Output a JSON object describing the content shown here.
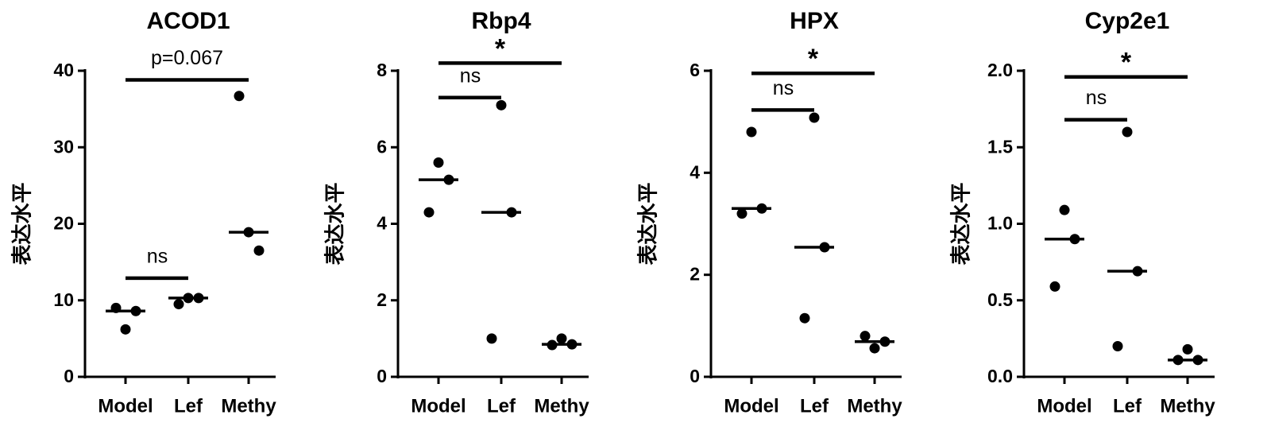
{
  "chart_data": [
    {
      "type": "dot",
      "title": "ACOD1",
      "y_label": "表达水平",
      "categories": [
        "Model",
        "Lef",
        "Methy"
      ],
      "values": [
        [
          9.0,
          6.2,
          8.6
        ],
        [
          9.5,
          10.3,
          10.3
        ],
        [
          36.7,
          18.9,
          16.5
        ]
      ],
      "medians": [
        8.6,
        10.3,
        18.9
      ],
      "ylim": [
        0,
        40
      ],
      "yticks": [
        0,
        10,
        20,
        30,
        40
      ],
      "annotations": [
        {
          "label": "ns",
          "groups": [
            0,
            1
          ],
          "y": 12.9
        },
        {
          "label": "p=0.067",
          "groups": [
            0,
            2
          ],
          "y": 38.8
        }
      ]
    },
    {
      "type": "dot",
      "title": "Rbp4",
      "y_label": "表达水平",
      "categories": [
        "Model",
        "Lef",
        "Methy"
      ],
      "values": [
        [
          4.3,
          5.6,
          5.15
        ],
        [
          1.0,
          7.1,
          4.3
        ],
        [
          0.83,
          1.0,
          0.85
        ]
      ],
      "medians": [
        5.15,
        4.3,
        0.85
      ],
      "ylim": [
        0,
        8
      ],
      "yticks": [
        0,
        2,
        4,
        6,
        8
      ],
      "annotations": [
        {
          "label": "ns",
          "groups": [
            0,
            1
          ],
          "y": 7.3
        },
        {
          "label": "*",
          "groups": [
            0,
            2
          ],
          "y": 8.2
        }
      ]
    },
    {
      "type": "dot",
      "title": "HPX",
      "y_label": "表达水平",
      "categories": [
        "Model",
        "Lef",
        "Methy"
      ],
      "values": [
        [
          3.2,
          4.8,
          3.3
        ],
        [
          1.15,
          5.08,
          2.54
        ],
        [
          0.8,
          0.56,
          0.69
        ]
      ],
      "medians": [
        3.3,
        2.54,
        0.69
      ],
      "ylim": [
        0,
        6
      ],
      "yticks": [
        0,
        2,
        4,
        6
      ],
      "annotations": [
        {
          "label": "ns",
          "groups": [
            0,
            1
          ],
          "y": 5.23
        },
        {
          "label": "*",
          "groups": [
            0,
            2
          ],
          "y": 5.95
        }
      ]
    },
    {
      "type": "dot",
      "title": "Cyp2e1",
      "y_label": "表达水平",
      "categories": [
        "Model",
        "Lef",
        "Methy"
      ],
      "values": [
        [
          0.59,
          1.09,
          0.9
        ],
        [
          0.2,
          1.6,
          0.69
        ],
        [
          0.11,
          0.18,
          0.11
        ]
      ],
      "medians": [
        0.9,
        0.69,
        0.11
      ],
      "ylim": [
        0,
        2
      ],
      "yticks": [
        {
          "value": 0,
          "label": "0.0"
        },
        {
          "value": 0.5,
          "label": "0.5"
        },
        {
          "value": 1,
          "label": "1.0"
        },
        {
          "value": 1.5,
          "label": "1.5"
        },
        {
          "value": 2,
          "label": "2.0"
        }
      ],
      "annotations": [
        {
          "label": "ns",
          "groups": [
            0,
            1
          ],
          "y": 1.68
        },
        {
          "label": "*",
          "groups": [
            0,
            2
          ],
          "y": 1.96
        }
      ]
    }
  ]
}
